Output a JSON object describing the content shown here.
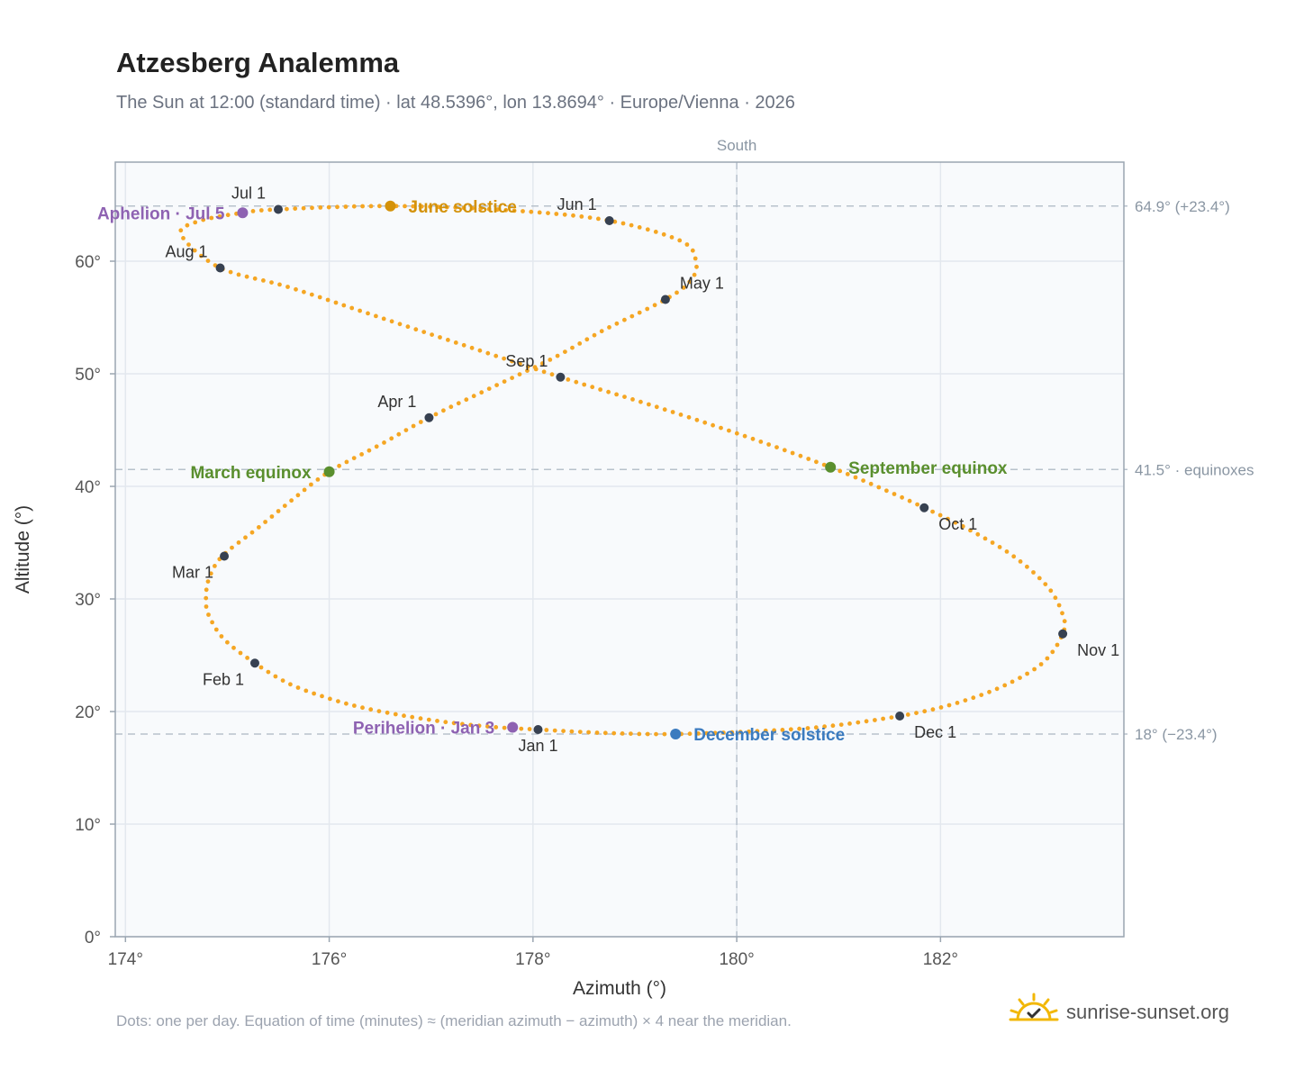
{
  "title": "Atzesberg Analemma",
  "subtitle": "The Sun at 12:00 (standard time) · lat 48.5396°, lon 13.8694° · Europe/Vienna · 2026",
  "footnote": "Dots: one per day. Equation of time (minutes) ≈ (meridian azimuth − azimuth) × 4 near the meridian.",
  "brand": {
    "name": "sunrise-sunset.org",
    "icon": "sun-logo-icon"
  },
  "colors": {
    "curve": "#f5a623",
    "month_marker": "#374151",
    "solstice_june": "#d4920a",
    "solstice_december": "#3b7bbf",
    "equinox": "#5a8f2e",
    "apsis": "#8e62b2",
    "reference_line": "#b8c2cc",
    "plot_background": "#f8fafc"
  },
  "chart_data": {
    "type": "scatter",
    "title": "Atzesberg Analemma",
    "xlabel": "Azimuth (°)",
    "ylabel": "Altitude (°)",
    "xlim": [
      173.9,
      183.8
    ],
    "ylim": [
      0,
      68.8
    ],
    "x_ticks": [
      {
        "value": 174,
        "label": "174°"
      },
      {
        "value": 176,
        "label": "176°"
      },
      {
        "value": 178,
        "label": "178°"
      },
      {
        "value": 180,
        "label": "180°"
      },
      {
        "value": 182,
        "label": "182°"
      }
    ],
    "y_ticks": [
      {
        "value": 0,
        "label": "0°"
      },
      {
        "value": 10,
        "label": "10°"
      },
      {
        "value": 20,
        "label": "20°"
      },
      {
        "value": 30,
        "label": "30°"
      },
      {
        "value": 40,
        "label": "40°"
      },
      {
        "value": 50,
        "label": "50°"
      },
      {
        "value": 60,
        "label": "60°"
      }
    ],
    "grid": true,
    "meridian": {
      "azimuth": 180,
      "label": "South"
    },
    "reference_lines": [
      {
        "altitude": 64.9,
        "label": "64.9° (+23.4°)"
      },
      {
        "altitude": 41.5,
        "label": "41.5° · equinoxes"
      },
      {
        "altitude": 18.0,
        "label": "18° (−23.4°)"
      }
    ],
    "curve_points": [
      [
        178.05,
        18.4
      ],
      [
        177.65,
        18.6
      ],
      [
        177.2,
        19.0
      ],
      [
        176.75,
        19.6
      ],
      [
        176.3,
        20.4
      ],
      [
        175.95,
        21.3
      ],
      [
        175.6,
        22.5
      ],
      [
        175.27,
        24.3
      ],
      [
        174.97,
        26.4
      ],
      [
        174.82,
        28.5
      ],
      [
        174.79,
        30.0
      ],
      [
        174.82,
        31.8
      ],
      [
        174.95,
        33.8
      ],
      [
        175.3,
        36.3
      ],
      [
        175.65,
        38.9
      ],
      [
        176.0,
        41.3
      ],
      [
        176.5,
        43.7
      ],
      [
        176.98,
        46.1
      ],
      [
        177.6,
        48.8
      ],
      [
        178.2,
        51.4
      ],
      [
        178.7,
        53.9
      ],
      [
        179.3,
        56.6
      ],
      [
        179.55,
        58.3
      ],
      [
        179.6,
        60.0
      ],
      [
        179.45,
        61.8
      ],
      [
        178.75,
        63.6
      ],
      [
        177.8,
        64.5
      ],
      [
        176.6,
        64.9
      ],
      [
        175.5,
        64.6
      ],
      [
        175.15,
        64.3
      ],
      [
        174.7,
        63.5
      ],
      [
        174.55,
        62.3
      ],
      [
        174.93,
        59.4
      ],
      [
        175.6,
        57.7
      ],
      [
        176.5,
        55.0
      ],
      [
        177.4,
        52.3
      ],
      [
        178.27,
        49.7
      ],
      [
        179.2,
        47.1
      ],
      [
        180.1,
        44.4
      ],
      [
        180.92,
        41.7
      ],
      [
        181.5,
        39.5
      ],
      [
        181.84,
        38.1
      ],
      [
        182.25,
        36.3
      ],
      [
        182.7,
        33.9
      ],
      [
        183.05,
        31.1
      ],
      [
        183.2,
        28.6
      ],
      [
        183.2,
        26.9
      ],
      [
        183.0,
        24.3
      ],
      [
        182.6,
        22.2
      ],
      [
        182.1,
        20.6
      ],
      [
        181.6,
        19.6
      ],
      [
        180.9,
        18.7
      ],
      [
        180.3,
        18.3
      ],
      [
        179.4,
        18.0
      ],
      [
        178.7,
        18.1
      ],
      [
        178.05,
        18.4
      ]
    ],
    "month_markers": [
      {
        "label": "Jan 1",
        "x": 178.05,
        "y": 18.4,
        "anchor": "below"
      },
      {
        "label": "Feb 1",
        "x": 175.27,
        "y": 24.3,
        "anchor": "below-left"
      },
      {
        "label": "Mar 1",
        "x": 174.97,
        "y": 33.8,
        "anchor": "below-left"
      },
      {
        "label": "Apr 1",
        "x": 176.98,
        "y": 46.1,
        "anchor": "above-left"
      },
      {
        "label": "May 1",
        "x": 179.3,
        "y": 56.6,
        "anchor": "above-right"
      },
      {
        "label": "Jun 1",
        "x": 178.75,
        "y": 63.6,
        "anchor": "above-left"
      },
      {
        "label": "Jul 1",
        "x": 175.5,
        "y": 64.6,
        "anchor": "above-left"
      },
      {
        "label": "Aug 1",
        "x": 174.93,
        "y": 59.4,
        "anchor": "above-left"
      },
      {
        "label": "Sep 1",
        "x": 178.27,
        "y": 49.7,
        "anchor": "above-left"
      },
      {
        "label": "Oct 1",
        "x": 181.84,
        "y": 38.1,
        "anchor": "below-right"
      },
      {
        "label": "Nov 1",
        "x": 183.2,
        "y": 26.9,
        "anchor": "below-right"
      },
      {
        "label": "Dec 1",
        "x": 181.6,
        "y": 19.6,
        "anchor": "below-right"
      }
    ],
    "events": [
      {
        "label": "June solstice",
        "x": 176.6,
        "y": 64.9,
        "kind": "solstice_june",
        "anchor": "right"
      },
      {
        "label": "December solstice",
        "x": 179.4,
        "y": 18.0,
        "kind": "solstice_december",
        "anchor": "right"
      },
      {
        "label": "March equinox",
        "x": 176.0,
        "y": 41.3,
        "kind": "equinox",
        "anchor": "left"
      },
      {
        "label": "September equinox",
        "x": 180.92,
        "y": 41.7,
        "kind": "equinox",
        "anchor": "right"
      },
      {
        "label": "Aphelion · Jul 5",
        "x": 175.15,
        "y": 64.3,
        "kind": "apsis",
        "anchor": "left"
      },
      {
        "label": "Perihelion · Jan 3",
        "x": 177.8,
        "y": 18.6,
        "kind": "apsis",
        "anchor": "left"
      }
    ]
  }
}
